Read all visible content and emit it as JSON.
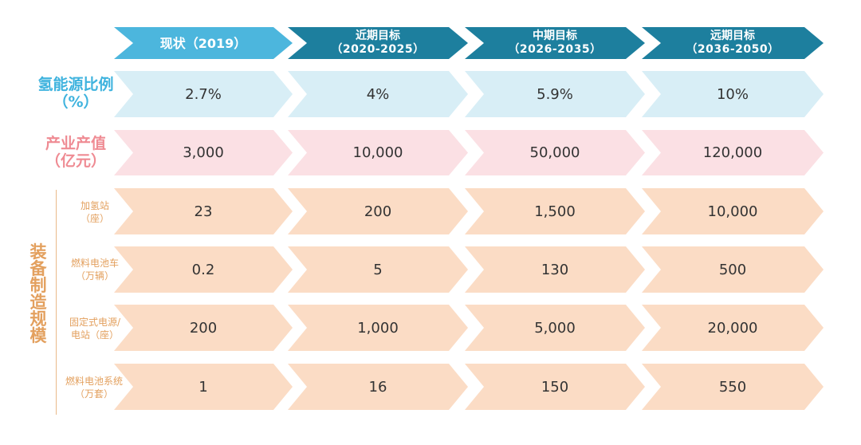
{
  "headers": [
    {
      "title": "现状（2019）",
      "sub": ""
    },
    {
      "title": "近期目标",
      "sub": "（2020-2025）"
    },
    {
      "title": "中期目标",
      "sub": "（2026-2035）"
    },
    {
      "title": "远期目标",
      "sub": "（2036-2050）"
    }
  ],
  "rows": {
    "ratio": {
      "label_1": "氢能源比例",
      "label_2": "（%）",
      "values": [
        "2.7%",
        "4%",
        "5.9%",
        "10%"
      ]
    },
    "output": {
      "label_1": "产业产值",
      "label_2": "（亿元）",
      "values": [
        "3,000",
        "10,000",
        "50,000",
        "120,000"
      ]
    },
    "equipment_label": "装备制造规模",
    "stations": {
      "label_1": "加氢站",
      "label_2": "（座）",
      "values": [
        "23",
        "200",
        "1,500",
        "10,000"
      ]
    },
    "vehicles": {
      "label_1": "燃料电池车",
      "label_2": "（万辆）",
      "values": [
        "0.2",
        "5",
        "130",
        "500"
      ]
    },
    "fixed_power": {
      "label_1": "固定式电源/",
      "label_2": "电站（座）",
      "values": [
        "200",
        "1,000",
        "5,000",
        "20,000"
      ]
    },
    "systems": {
      "label_1": "燃料电池系统",
      "label_2": "（万套）",
      "values": [
        "1",
        "16",
        "150",
        "550"
      ]
    }
  },
  "colors": {
    "header_1": "#4cb6dd",
    "header_2": "#1d7f9e",
    "header_3": "#1d7f9e",
    "header_4": "#1d7f9e",
    "ratio_bg": "#d8eef6",
    "ratio_text": "#3fb3de",
    "output_bg": "#fbe0e4",
    "output_text": "#ef8b93",
    "equip_bg": "#fbdcc5",
    "equip_text": "#e3a05e"
  }
}
